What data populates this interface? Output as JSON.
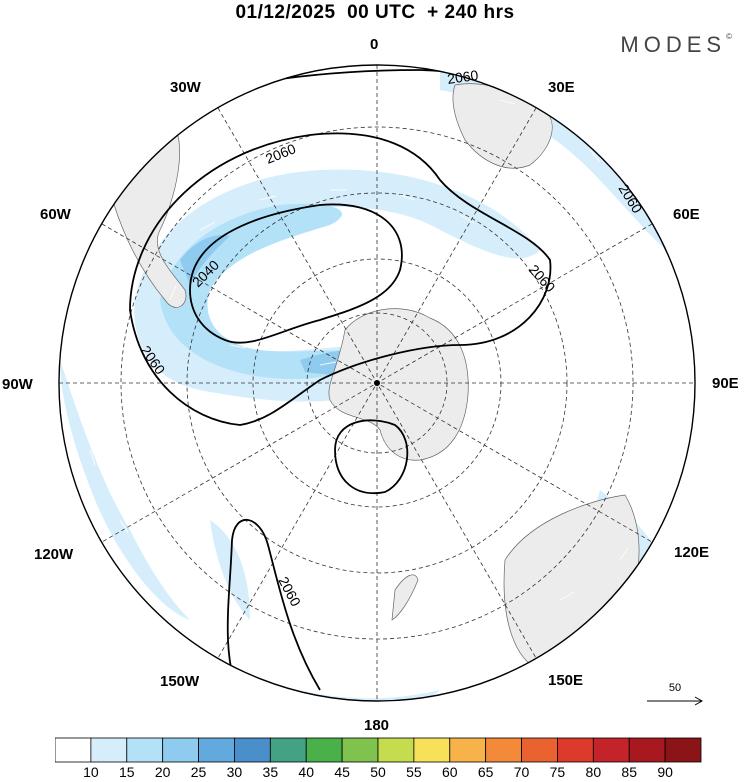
{
  "header": {
    "title": "01/12/2025  00 UTC  + 240 hrs",
    "brand": "MODES",
    "brand_mark": "©"
  },
  "map": {
    "projection": "south-polar-stereographic",
    "longitude_labels": [
      "0",
      "30E",
      "60E",
      "90E",
      "120E",
      "150E",
      "180",
      "150W",
      "120W",
      "90W",
      "60W",
      "30W"
    ],
    "contour_labels": [
      "2060",
      "2060",
      "2060",
      "2060",
      "2040",
      "2060",
      "2060"
    ]
  },
  "reference_vector": {
    "label": "50"
  },
  "colorbar": {
    "labels": [
      "10",
      "15",
      "20",
      "25",
      "30",
      "35",
      "40",
      "45",
      "50",
      "55",
      "60",
      "65",
      "70",
      "75",
      "80",
      "85",
      "90"
    ],
    "colors": [
      "#ffffff",
      "#d6eefb",
      "#b3e1f8",
      "#8ecbef",
      "#62a9dd",
      "#4a8fc9",
      "#43a184",
      "#4ab04a",
      "#7fc24d",
      "#c5dc4f",
      "#f8e15a",
      "#f7b34a",
      "#f28a3a",
      "#e9622f",
      "#dc3a2b",
      "#c42429",
      "#a8191f",
      "#8b1418"
    ]
  }
}
